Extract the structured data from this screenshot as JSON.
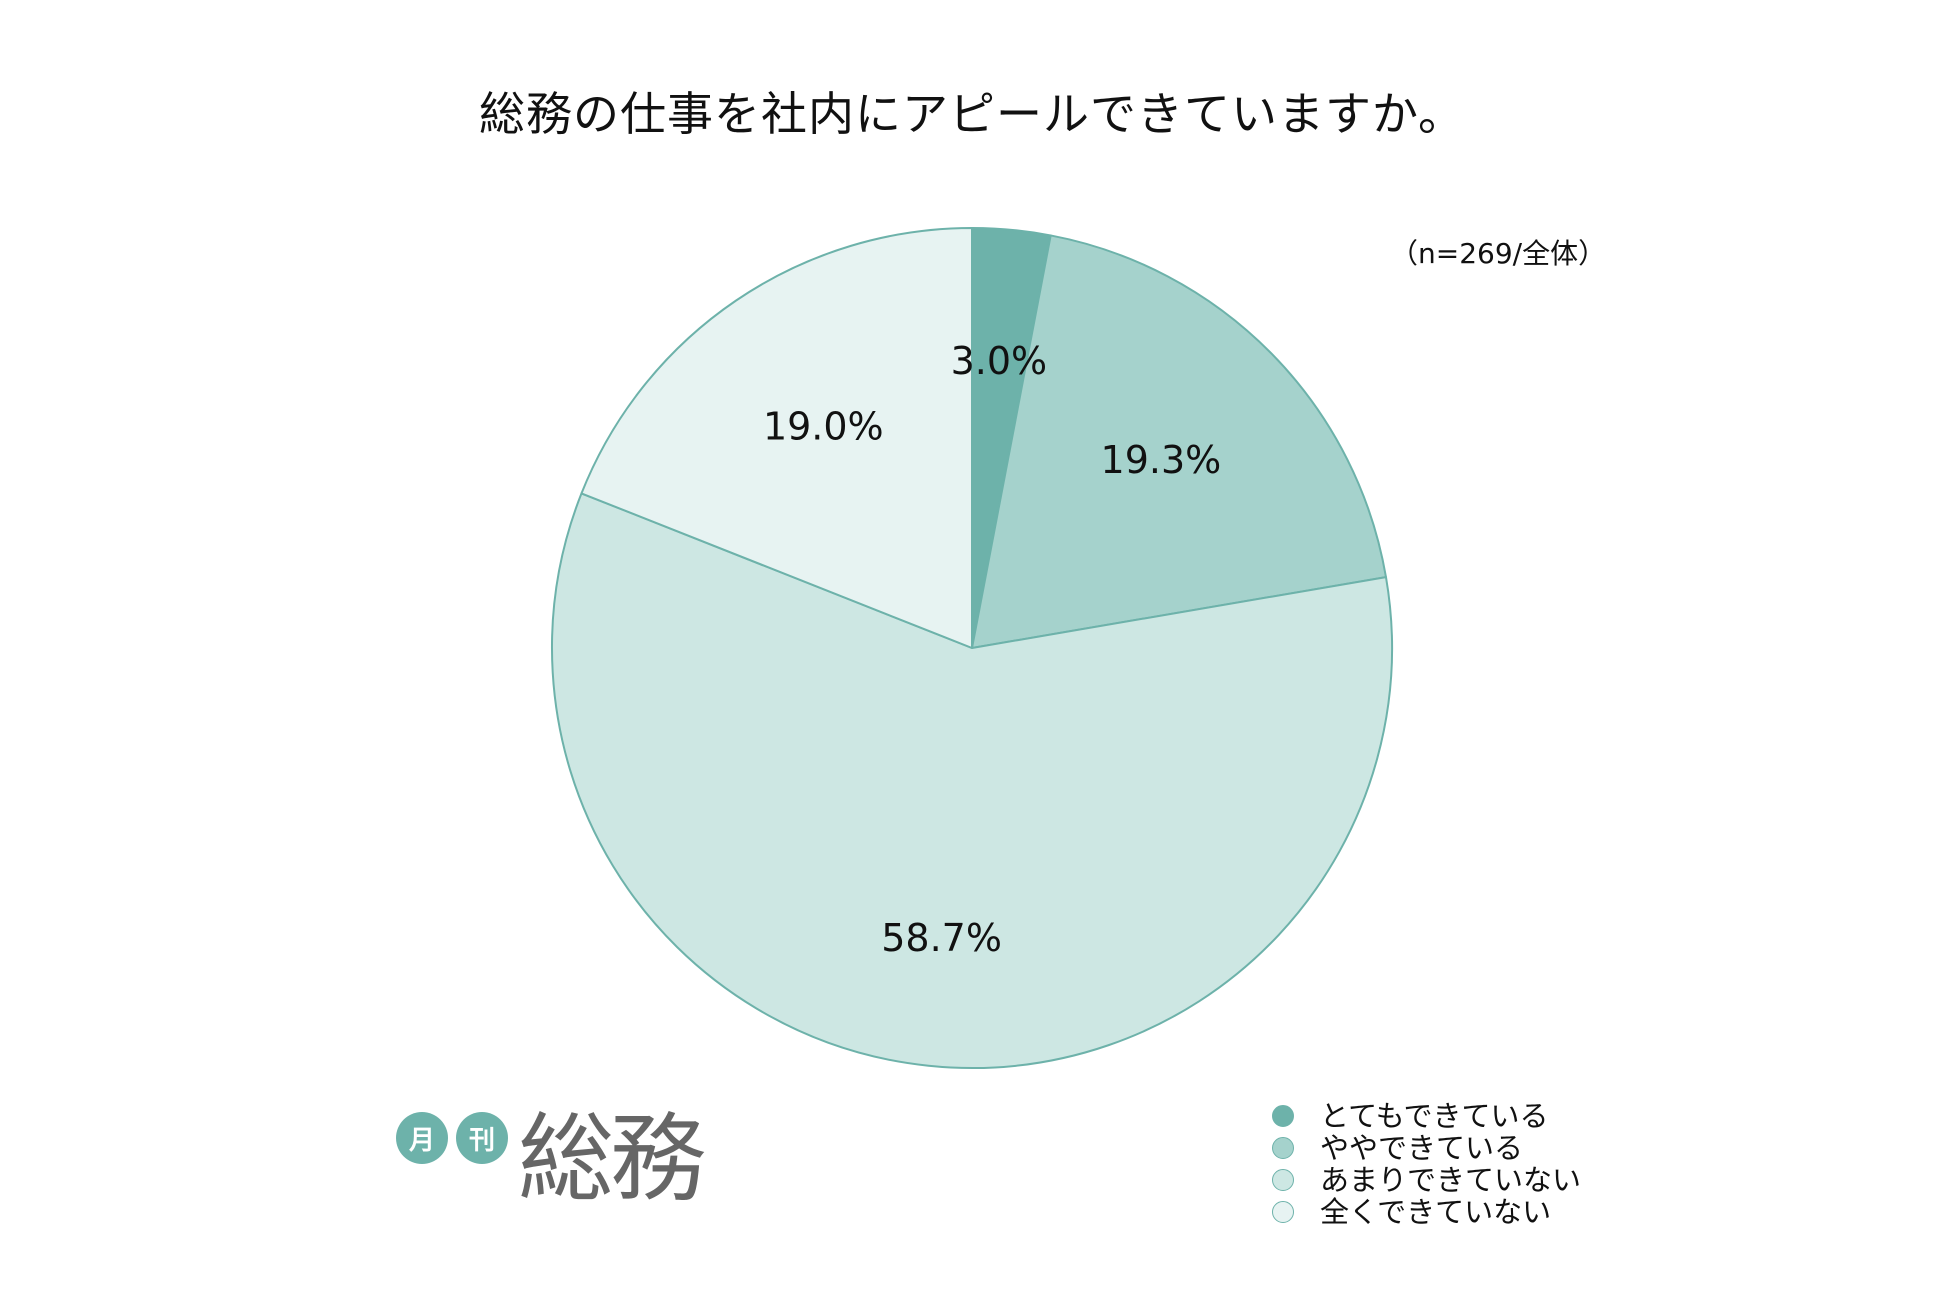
{
  "title": "総務の仕事を社内にアピールできていますか。",
  "sample_note": "（n=269/全体）",
  "brand": {
    "badge_1": "月",
    "badge_2": "刊",
    "word": "総務",
    "badge_color": "#6db2aa",
    "word_color": "#666666"
  },
  "colors": {
    "outline": "#6db2aa"
  },
  "chart_data": {
    "type": "pie",
    "title": "総務の仕事を社内にアピールできていますか。",
    "start_angle": "12 o'clock",
    "direction": "clockwise",
    "legend_position": "bottom-right",
    "slices": [
      {
        "label": "とてもできている",
        "value": 3.0,
        "display": "3.0%",
        "color": "#6db2aa"
      },
      {
        "label": "ややできている",
        "value": 19.3,
        "display": "19.3%",
        "color": "#a5d2cc"
      },
      {
        "label": "あまりできていない",
        "value": 58.7,
        "display": "58.7%",
        "color": "#cde7e3"
      },
      {
        "label": "全くできていない",
        "value": 19.0,
        "display": "19.0%",
        "color": "#e7f3f2"
      }
    ]
  }
}
